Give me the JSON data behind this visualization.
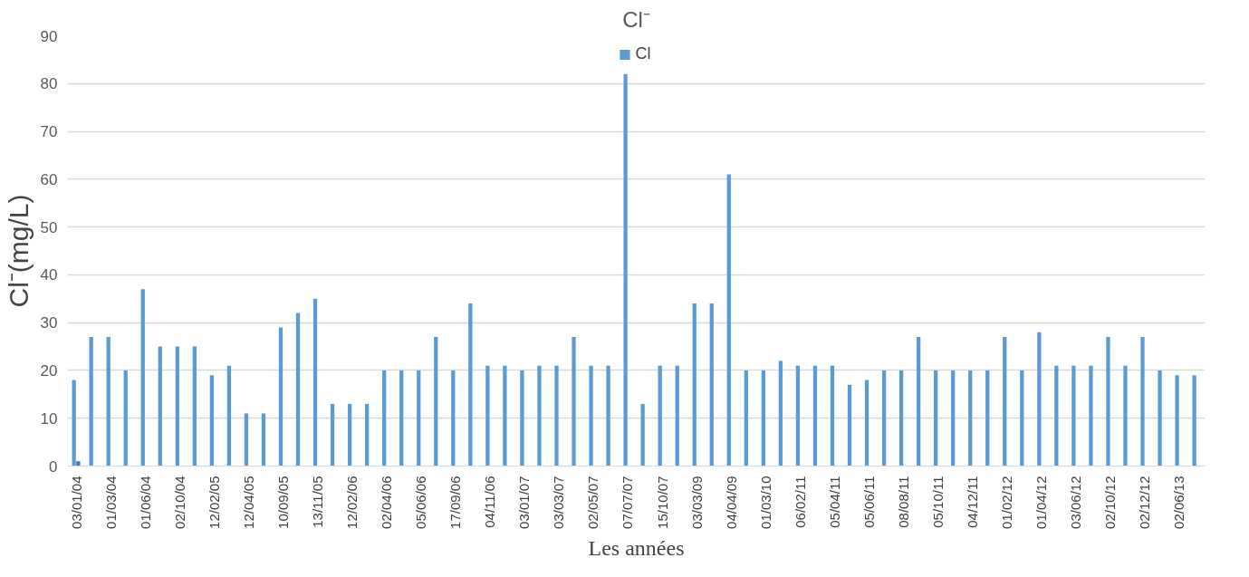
{
  "chart_data": {
    "type": "bar",
    "title": "Cl⁻",
    "xlabel": "Les années",
    "ylabel": "Cl⁻(mg/L)",
    "categories": [
      "03/01/04",
      null,
      "01/03/04",
      null,
      "01/06/04",
      null,
      "02/10/04",
      null,
      "12/02/05",
      null,
      "12/04/05",
      null,
      "10/09/05",
      null,
      "13/11/05",
      null,
      "12/02/06",
      null,
      "02/04/06",
      null,
      "05/06/06",
      null,
      "17/09/06",
      null,
      "04/11/06",
      null,
      "03/01/07",
      null,
      "03/03/07",
      null,
      "02/05/07",
      null,
      "07/07/07",
      null,
      "15/10/07",
      null,
      "03/03/09",
      null,
      "04/04/09",
      null,
      "01/03/10",
      null,
      "06/02/11",
      null,
      "05/04/11",
      null,
      "05/06/11",
      null,
      "08/08/11",
      null,
      "05/10/11",
      null,
      "04/12/11",
      null,
      "01/02/12",
      null,
      "01/04/12",
      null,
      "03/06/12",
      null,
      "02/10/12",
      null,
      "02/12/12",
      null,
      "02/06/13",
      null
    ],
    "series": [
      {
        "name": "Cl",
        "color": "#5b9bd5",
        "values": [
          18,
          27,
          27,
          20,
          37,
          25,
          25,
          25,
          19,
          21,
          11,
          11,
          29,
          32,
          35,
          13,
          13,
          13,
          20,
          20,
          20,
          27,
          20,
          34,
          21,
          21,
          20,
          21,
          21,
          27,
          21,
          21,
          82,
          13,
          21,
          21,
          34,
          34,
          61,
          20,
          20,
          22,
          21,
          21,
          21,
          17,
          18,
          20,
          20,
          27,
          20,
          20,
          20,
          20,
          27,
          20,
          28,
          21,
          21,
          21,
          27,
          21,
          27,
          20,
          19,
          19
        ]
      },
      {
        "color": "#4472c4",
        "values": [
          1,
          null,
          null,
          null,
          null,
          null,
          null,
          null,
          null,
          null,
          null,
          null,
          null,
          null,
          null,
          null,
          null,
          null,
          null,
          null,
          null,
          null,
          null,
          null,
          null,
          null,
          null,
          null,
          null,
          null,
          null,
          null,
          null,
          null,
          null,
          null,
          null,
          null,
          null,
          null,
          null,
          null,
          null,
          null,
          null,
          null,
          null,
          null,
          null,
          null,
          null,
          null,
          null,
          null,
          null,
          null,
          null,
          null,
          null,
          null,
          null,
          null,
          null,
          null,
          null,
          null
        ]
      }
    ],
    "ylim": [
      0,
      90
    ],
    "yticks": [
      0,
      10,
      20,
      30,
      40,
      50,
      60,
      70,
      80,
      90
    ],
    "grid": "y",
    "legend": "top"
  }
}
